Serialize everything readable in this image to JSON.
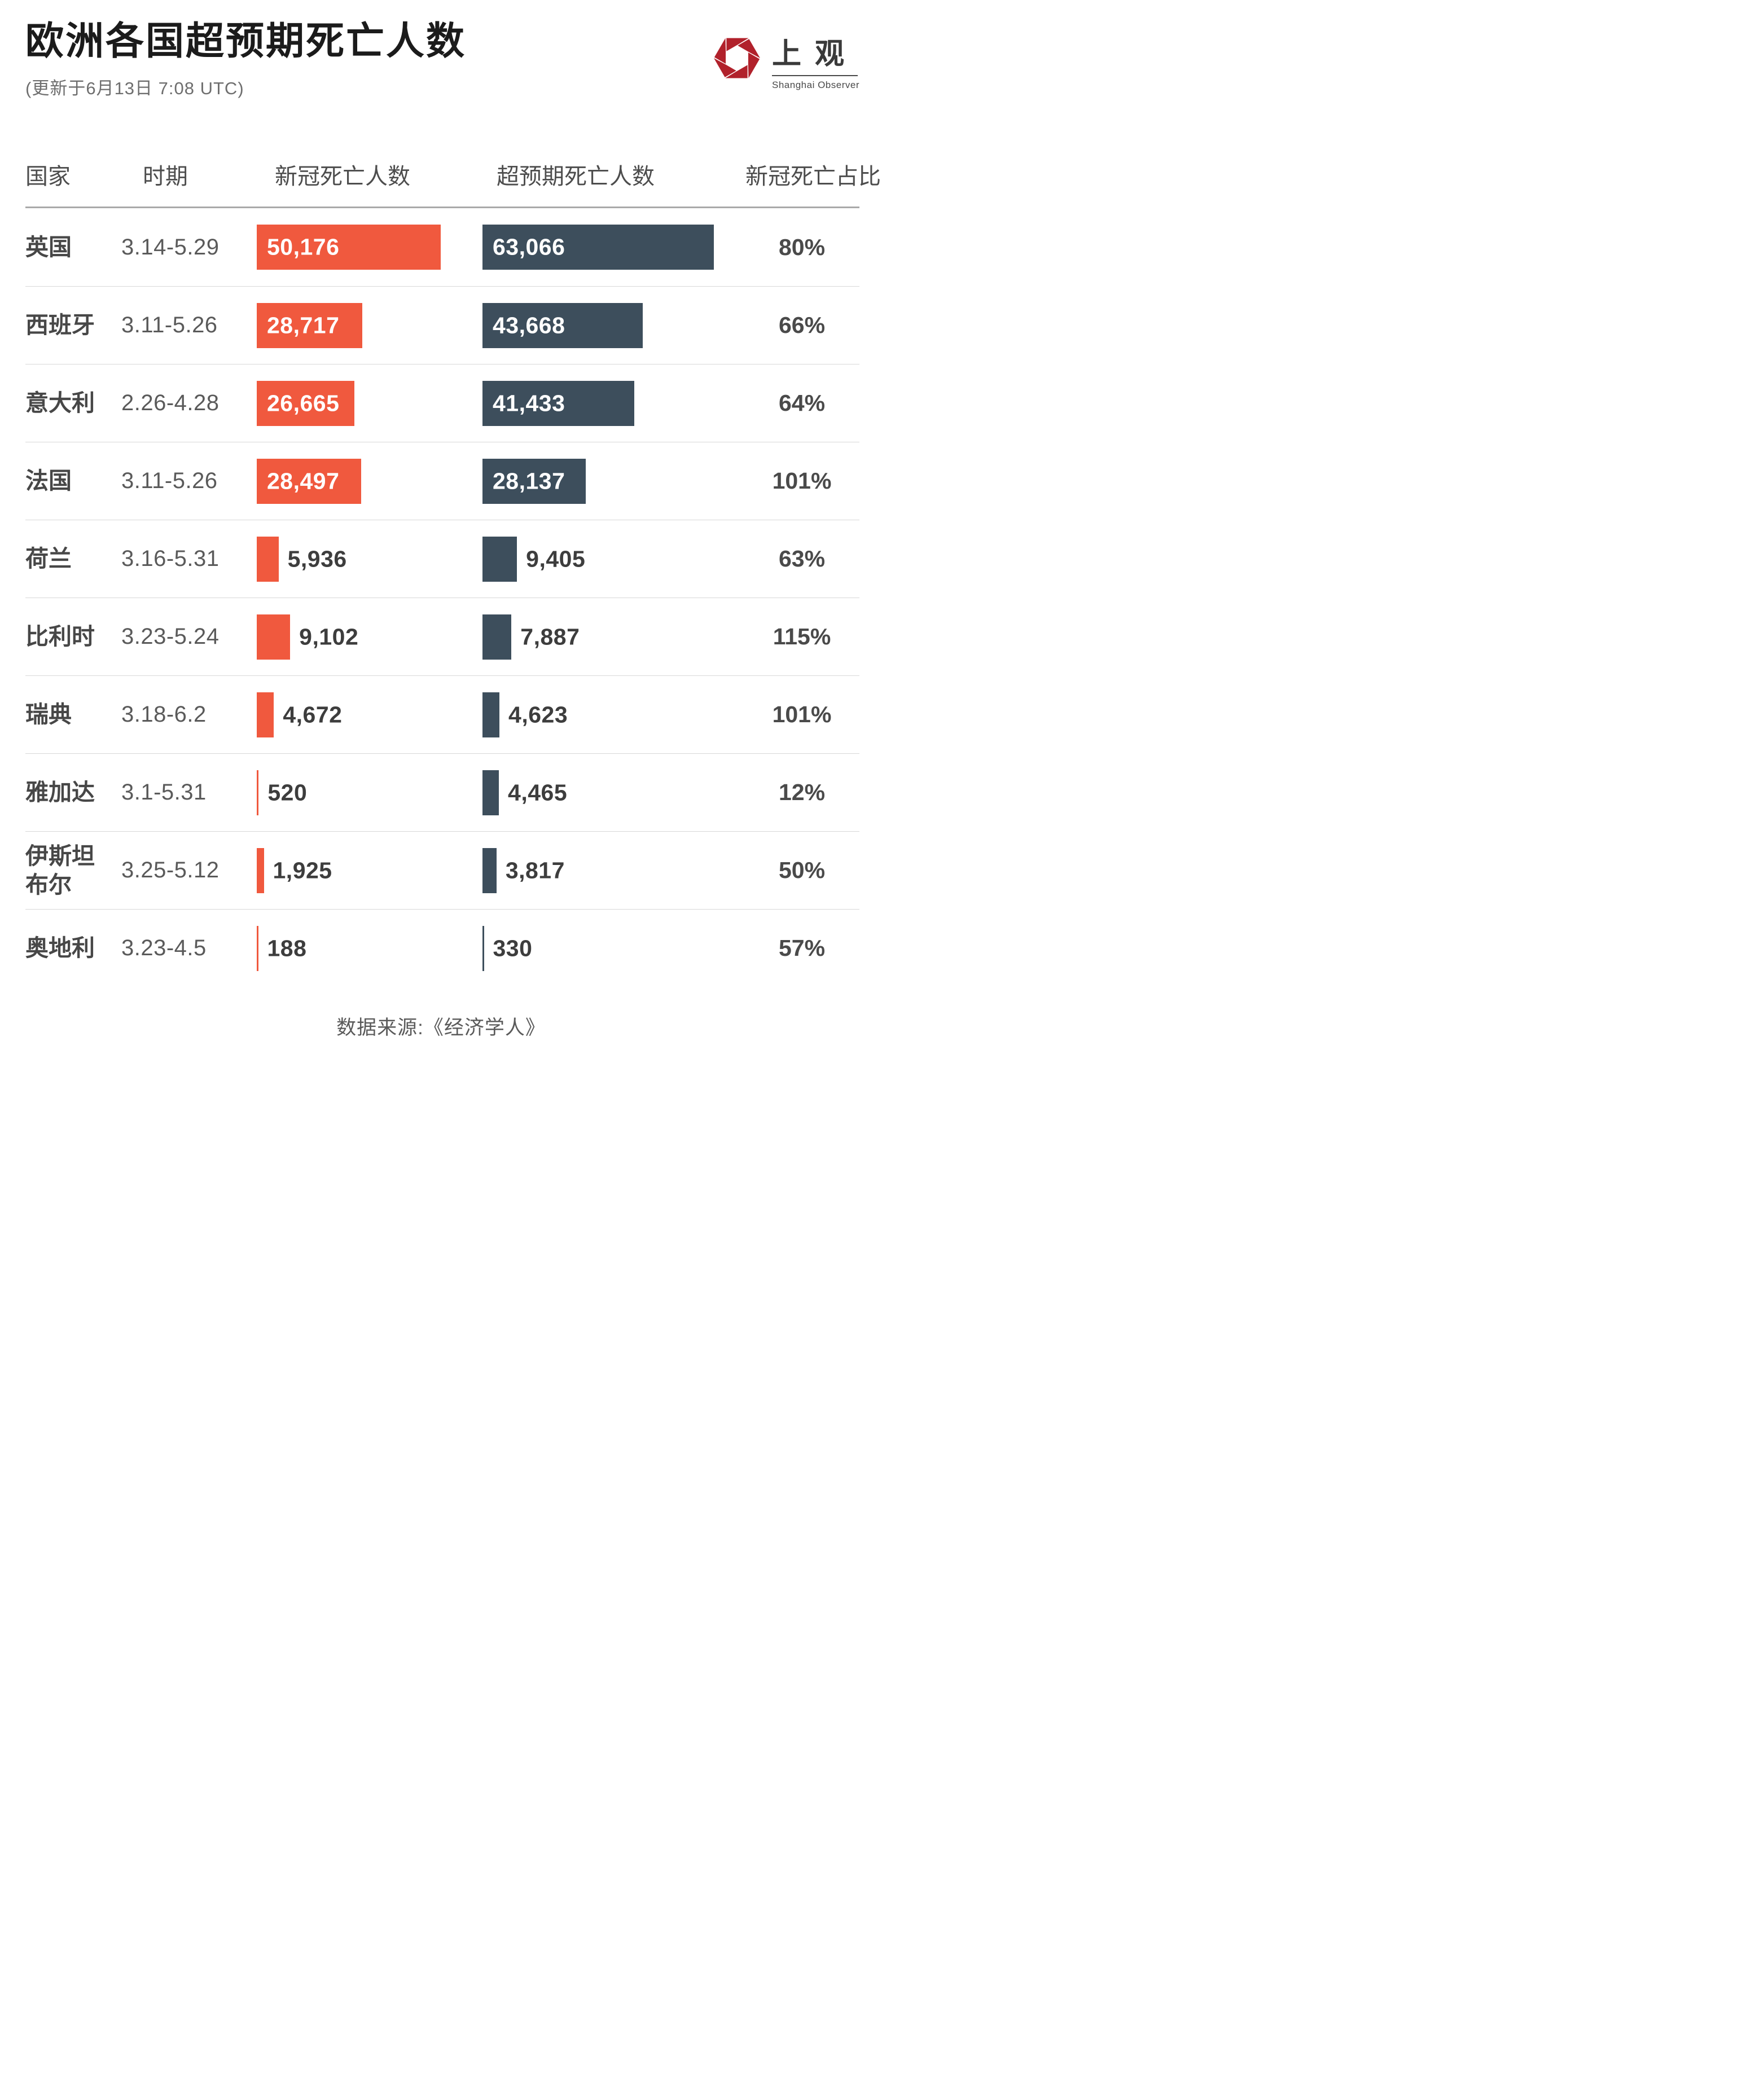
{
  "header": {
    "title": "欧洲各国超预期死亡人数",
    "subtitle": "(更新于6月13日 7:08 UTC)",
    "logo": {
      "cn": "上观",
      "en": "Shanghai Observer",
      "icon": "aperture-hexagon-icon",
      "color": "#B1212B"
    }
  },
  "table": {
    "columns": [
      "国家",
      "时期",
      "新冠死亡人数",
      "超预期死亡人数",
      "新冠死亡占比"
    ]
  },
  "chart_data": {
    "type": "bar",
    "orientation": "horizontal",
    "title": "欧洲各国超预期死亡人数",
    "updated": "(更新于6月13日 7:08 UTC)",
    "categories": [
      "英国",
      "西班牙",
      "意大利",
      "法国",
      "荷兰",
      "比利时",
      "瑞典",
      "雅加达",
      "伊斯坦布尔",
      "奥地利"
    ],
    "periods": [
      "3.14-5.29",
      "3.11-5.26",
      "2.26-4.28",
      "3.11-5.26",
      "3.16-5.31",
      "3.23-5.24",
      "3.18-6.2",
      "3.1-5.31",
      "3.25-5.12",
      "3.23-4.5"
    ],
    "series": [
      {
        "name": "新冠死亡人数",
        "color": "#F0593E",
        "values": [
          50176,
          28717,
          26665,
          28497,
          5936,
          9102,
          4672,
          520,
          1925,
          188
        ]
      },
      {
        "name": "超预期死亡人数",
        "color": "#3D4E5C",
        "values": [
          63066,
          43668,
          41433,
          28137,
          9405,
          7887,
          4623,
          4465,
          3817,
          330
        ]
      }
    ],
    "covid_share": [
      "80%",
      "66%",
      "64%",
      "101%",
      "63%",
      "115%",
      "101%",
      "12%",
      "50%",
      "57%"
    ],
    "xmax": 63066,
    "grid": false,
    "legend_position": "column-headers",
    "source": "数据来源:《经济学人》"
  },
  "footer": {
    "source": "数据来源:《经济学人》"
  },
  "colors": {
    "bar_covid": "#F0593E",
    "bar_excess": "#3D4E5C",
    "logo_red": "#B1212B",
    "title": "#1b1b1b",
    "subtitle": "#6e6e6e",
    "header_text": "#4d4d4d",
    "country": "#474747",
    "period": "#5a5a5a",
    "value_dark": "#3d3d3d",
    "value_light": "#ffffff",
    "percent": "#4a4a4a",
    "separator": "#d8d8d8",
    "header_rule": "#a9a9a9"
  }
}
